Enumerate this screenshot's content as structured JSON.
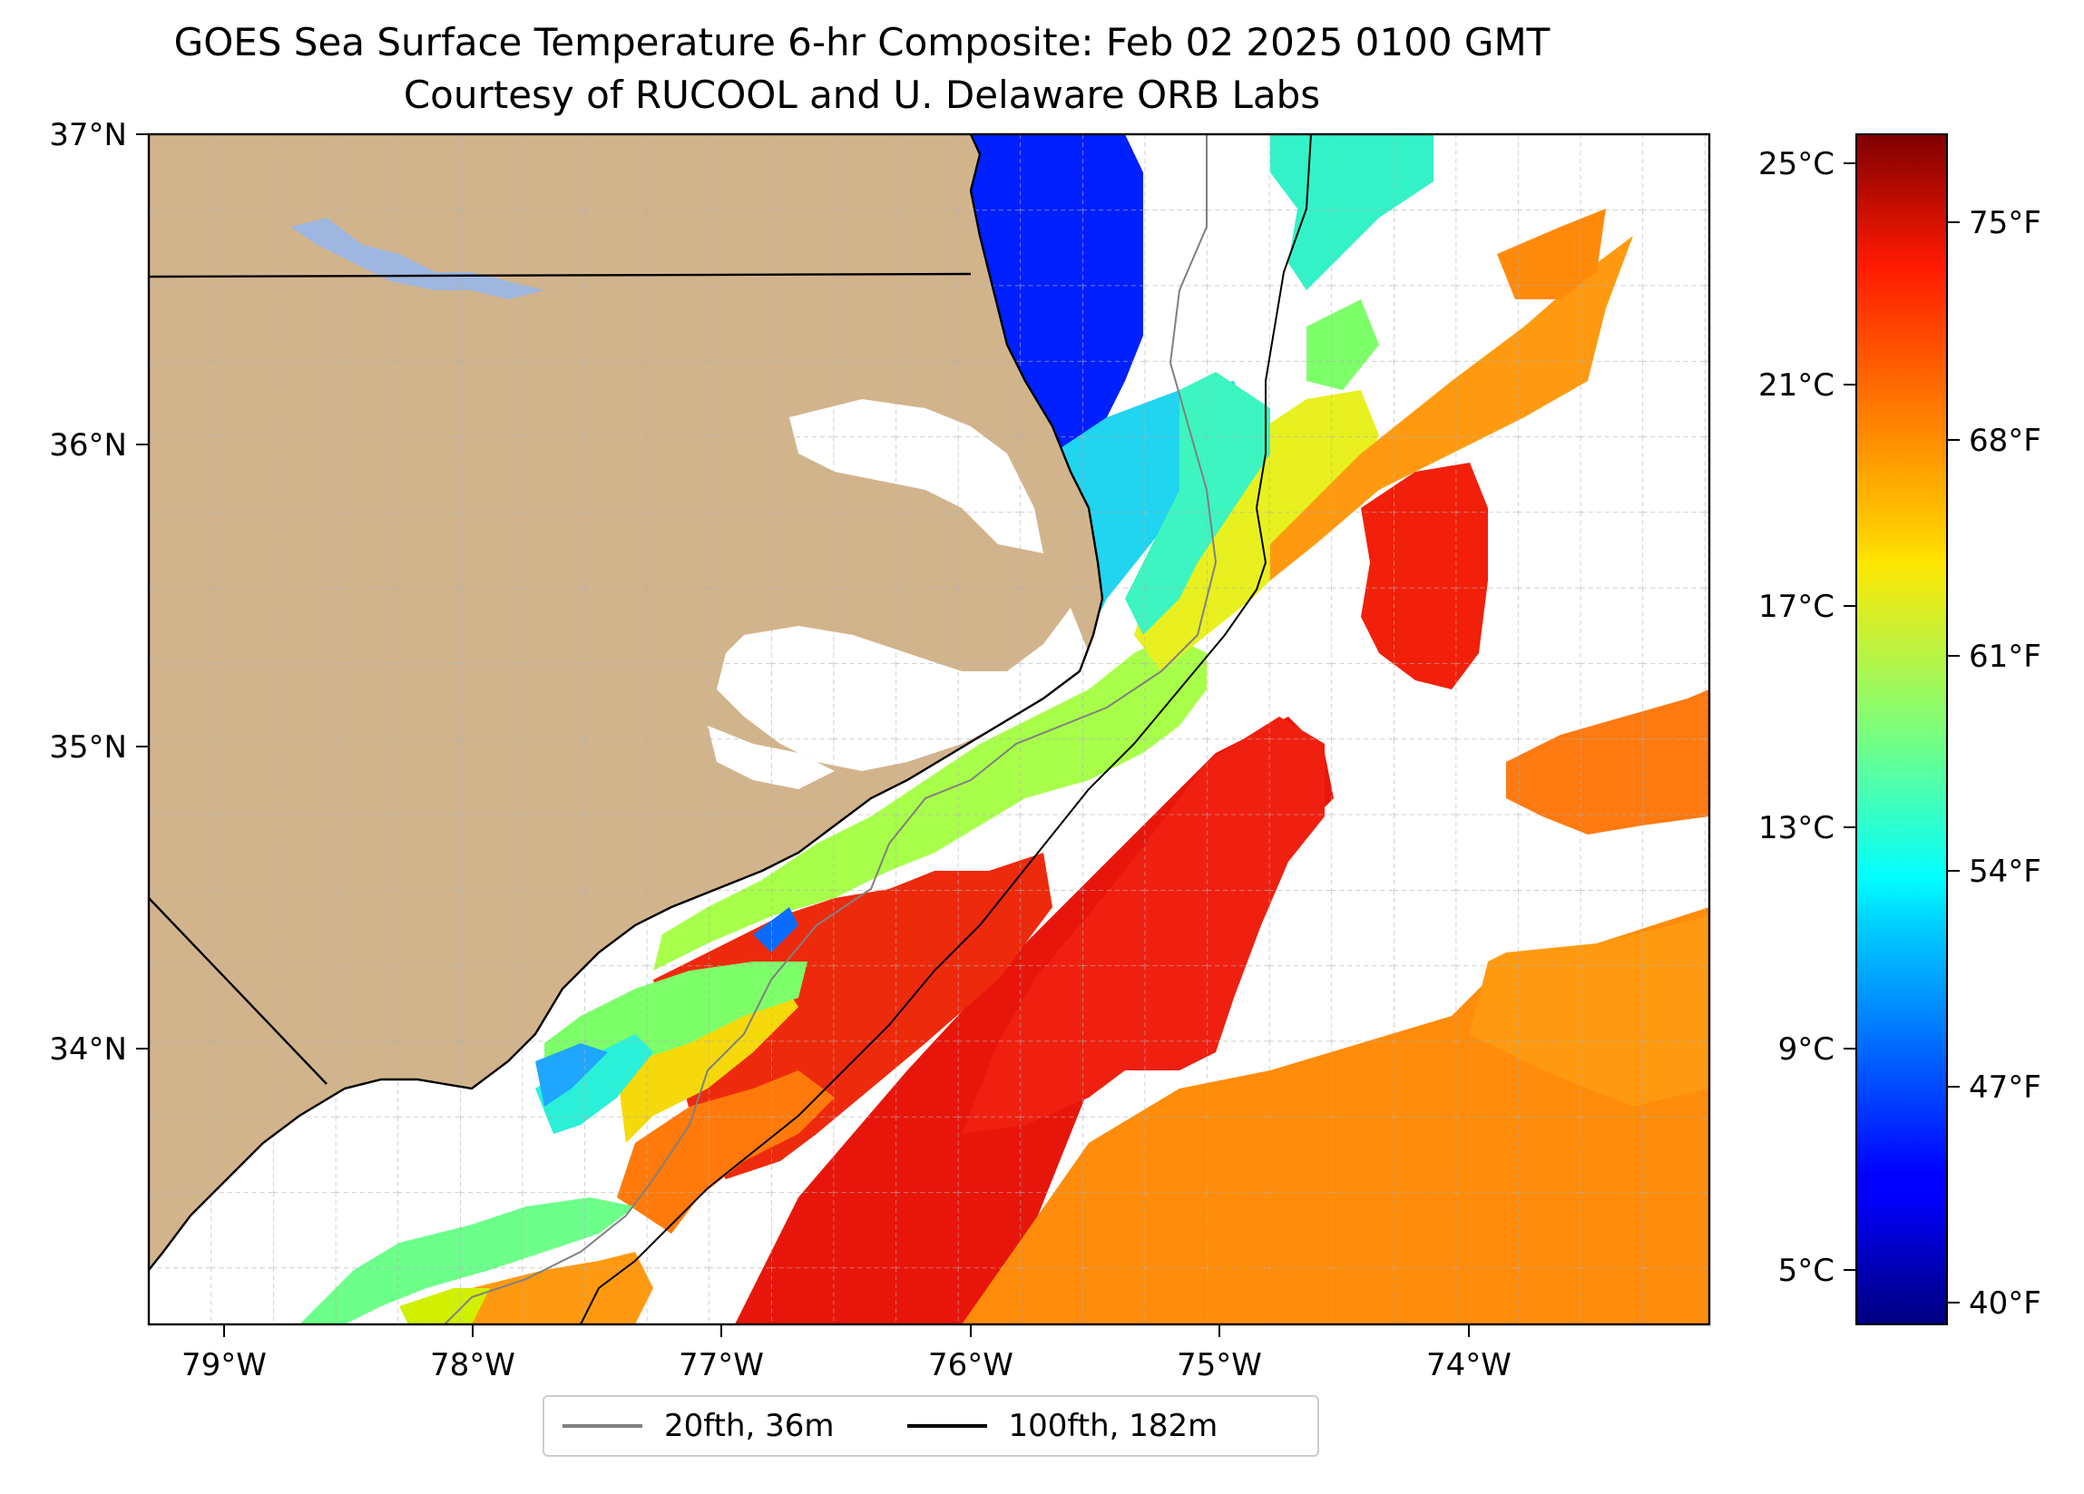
{
  "title": {
    "line1": "GOES Sea Surface Temperature 6-hr Composite: Feb 02 2025 0100 GMT",
    "line2": "Courtesy of RUCOOL and U. Delaware ORB Labs"
  },
  "axes": {
    "lat_ticks": [
      "37°N",
      "36°N",
      "35°N",
      "34°N"
    ],
    "lon_ticks": [
      "79°W",
      "78°W",
      "77°W",
      "76°W",
      "75°W",
      "74°W"
    ]
  },
  "colorbar": {
    "celsius_ticks": [
      "25°C",
      "21°C",
      "17°C",
      "13°C",
      "9°C",
      "5°C"
    ],
    "fahrenheit_ticks": [
      "75°F",
      "68°F",
      "61°F",
      "54°F",
      "47°F",
      "40°F"
    ]
  },
  "legend": {
    "items": [
      {
        "label": "20fth, 36m",
        "color": "#808080"
      },
      {
        "label": "100fth, 182m",
        "color": "#000000"
      }
    ]
  },
  "colors": {
    "land": "#d2b48c",
    "lake": "#9db7e0",
    "colormap": "jet"
  }
}
